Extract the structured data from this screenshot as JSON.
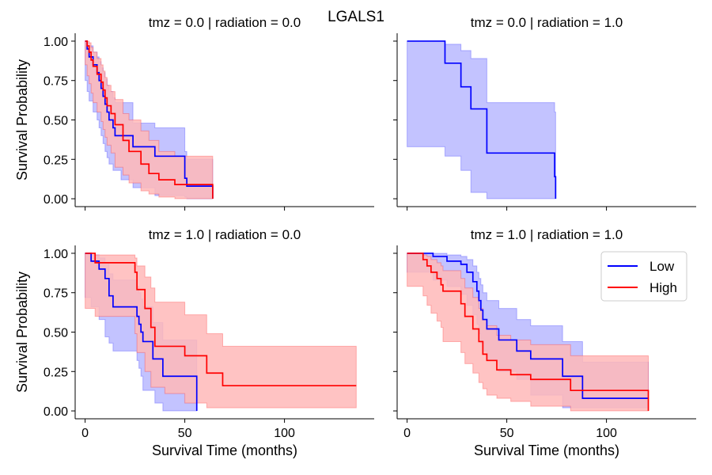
{
  "figure": {
    "suptitle": "LGALS1",
    "colors": {
      "Low": "#0000ff",
      "High": "#ff0000"
    },
    "legend": {
      "placement": "upper right of bottom-right panel",
      "entries": [
        "Low",
        "High"
      ]
    }
  },
  "chart_data": [
    {
      "type": "line",
      "title": "tmz = 0.0 | radiation = 0.0",
      "xlabel": "",
      "ylabel": "Survival Probability",
      "xlim": [
        -5,
        145
      ],
      "ylim": [
        -0.05,
        1.05
      ],
      "xticks": [
        0,
        50,
        100
      ],
      "yticks": [
        "0.00",
        "0.25",
        "0.50",
        "0.75",
        "1.00"
      ],
      "series": [
        {
          "name": "Low",
          "color": "#0000ff",
          "x": [
            0,
            1,
            2,
            4,
            6,
            7,
            8,
            9,
            10,
            11,
            12,
            14,
            15,
            18,
            24,
            35,
            50,
            51,
            64
          ],
          "y": [
            1.0,
            0.95,
            0.9,
            0.85,
            0.8,
            0.75,
            0.7,
            0.65,
            0.6,
            0.55,
            0.5,
            0.45,
            0.4,
            0.4,
            0.33,
            0.27,
            0.13,
            0.08,
            0.0
          ],
          "ci_lower": [
            1.0,
            0.75,
            0.68,
            0.62,
            0.55,
            0.5,
            0.45,
            0.4,
            0.35,
            0.3,
            0.26,
            0.22,
            0.18,
            0.18,
            0.12,
            0.07,
            0.02,
            0.01,
            0.0
          ],
          "ci_upper": [
            1.0,
            0.99,
            0.97,
            0.93,
            0.9,
            0.87,
            0.83,
            0.8,
            0.76,
            0.72,
            0.68,
            0.64,
            0.61,
            0.61,
            0.48,
            0.45,
            0.3,
            0.25,
            0.25
          ]
        },
        {
          "name": "High",
          "color": "#ff0000",
          "x": [
            0,
            1,
            2,
            3,
            4,
            6,
            8,
            9,
            10,
            11,
            13,
            15,
            19,
            22,
            28,
            32,
            37,
            45,
            64
          ],
          "y": [
            1.0,
            0.97,
            0.93,
            0.88,
            0.84,
            0.79,
            0.74,
            0.69,
            0.64,
            0.59,
            0.54,
            0.47,
            0.37,
            0.3,
            0.22,
            0.16,
            0.12,
            0.09,
            0.0
          ],
          "ci_lower": [
            1.0,
            0.85,
            0.78,
            0.73,
            0.67,
            0.61,
            0.55,
            0.49,
            0.44,
            0.39,
            0.34,
            0.29,
            0.2,
            0.15,
            0.1,
            0.05,
            0.03,
            0.01,
            0.0
          ],
          "ci_upper": [
            1.0,
            1.0,
            0.99,
            0.96,
            0.93,
            0.89,
            0.85,
            0.81,
            0.77,
            0.72,
            0.68,
            0.63,
            0.54,
            0.5,
            0.43,
            0.37,
            0.3,
            0.27,
            0.27
          ]
        }
      ]
    },
    {
      "type": "line",
      "title": "tmz = 0.0 | radiation = 1.0",
      "xlabel": "",
      "ylabel": "",
      "xlim": [
        -5,
        145
      ],
      "ylim": [
        -0.05,
        1.05
      ],
      "xticks": [
        0,
        50,
        100
      ],
      "yticks": [
        "0.00",
        "0.25",
        "0.50",
        "0.75",
        "1.00"
      ],
      "series": [
        {
          "name": "Low",
          "color": "#0000ff",
          "x": [
            0,
            19,
            27,
            32,
            40,
            74,
            74.5
          ],
          "y": [
            1.0,
            0.86,
            0.71,
            0.57,
            0.29,
            0.14,
            0.0
          ],
          "ci_lower": [
            1.0,
            0.33,
            0.27,
            0.18,
            0.04,
            0.0,
            0.0
          ],
          "ci_upper": [
            1.0,
            0.98,
            0.94,
            0.89,
            0.61,
            0.55,
            0.55
          ]
        }
      ]
    },
    {
      "type": "line",
      "title": "tmz = 1.0 | radiation = 0.0",
      "xlabel": "Survival Time (months)",
      "ylabel": "Survival Probability",
      "xlim": [
        -5,
        145
      ],
      "ylim": [
        -0.05,
        1.05
      ],
      "xticks": [
        0,
        50,
        100
      ],
      "yticks": [
        "0.00",
        "0.25",
        "0.50",
        "0.75",
        "1.00"
      ],
      "series": [
        {
          "name": "Low",
          "color": "#0000ff",
          "x": [
            0,
            3,
            7,
            10,
            12,
            14,
            26,
            27,
            28,
            29,
            34,
            35,
            39,
            56
          ],
          "y": [
            1.0,
            0.95,
            0.9,
            0.84,
            0.73,
            0.66,
            0.6,
            0.55,
            0.5,
            0.44,
            0.33,
            0.33,
            0.22,
            0.0
          ],
          "ci_lower": [
            1.0,
            0.72,
            0.66,
            0.58,
            0.47,
            0.43,
            0.38,
            0.32,
            0.27,
            0.22,
            0.13,
            0.13,
            0.05,
            0.0
          ],
          "ci_upper": [
            1.0,
            0.99,
            0.97,
            0.94,
            0.87,
            0.83,
            0.79,
            0.75,
            0.71,
            0.66,
            0.56,
            0.56,
            0.45,
            0.45
          ]
        },
        {
          "name": "High",
          "color": "#ff0000",
          "x": [
            0,
            5,
            25,
            26,
            30,
            33,
            35,
            40,
            50,
            61,
            69,
            136
          ],
          "y": [
            1.0,
            0.94,
            0.88,
            0.77,
            0.65,
            0.53,
            0.41,
            0.41,
            0.35,
            0.24,
            0.16,
            0.16
          ],
          "ci_lower": [
            1.0,
            0.65,
            0.6,
            0.49,
            0.37,
            0.25,
            0.15,
            0.15,
            0.11,
            0.05,
            0.02,
            0.02
          ],
          "ci_upper": [
            1.0,
            0.99,
            0.97,
            0.92,
            0.85,
            0.78,
            0.69,
            0.69,
            0.61,
            0.49,
            0.41,
            0.41
          ]
        }
      ]
    },
    {
      "type": "line",
      "title": "tmz = 1.0 | radiation = 1.0",
      "xlabel": "Survival Time (months)",
      "ylabel": "",
      "xlim": [
        -5,
        145
      ],
      "ylim": [
        -0.05,
        1.05
      ],
      "xticks": [
        0,
        50,
        100
      ],
      "yticks": [
        "0.00",
        "0.25",
        "0.50",
        "0.75",
        "1.00"
      ],
      "series": [
        {
          "name": "Low",
          "color": "#0000ff",
          "x": [
            0,
            13,
            20,
            27,
            30,
            33,
            35,
            36,
            37,
            38,
            40,
            46,
            55,
            62,
            78,
            88,
            121
          ],
          "y": [
            1.0,
            0.98,
            0.95,
            0.93,
            0.88,
            0.82,
            0.76,
            0.7,
            0.64,
            0.58,
            0.52,
            0.45,
            0.38,
            0.33,
            0.22,
            0.08,
            0.08
          ],
          "ci_lower": [
            1.0,
            0.88,
            0.83,
            0.79,
            0.74,
            0.67,
            0.61,
            0.55,
            0.49,
            0.43,
            0.38,
            0.32,
            0.25,
            0.2,
            0.1,
            0.02,
            0.02
          ],
          "ci_upper": [
            1.0,
            1.0,
            0.99,
            0.98,
            0.96,
            0.92,
            0.88,
            0.84,
            0.8,
            0.75,
            0.7,
            0.65,
            0.58,
            0.54,
            0.44,
            0.31,
            0.31
          ]
        },
        {
          "name": "High",
          "color": "#ff0000",
          "x": [
            0,
            8,
            10,
            12,
            15,
            17,
            18,
            27,
            29,
            33,
            36,
            38,
            40,
            45,
            52,
            62,
            82,
            121
          ],
          "y": [
            1.0,
            0.96,
            0.92,
            0.88,
            0.84,
            0.8,
            0.76,
            0.68,
            0.6,
            0.52,
            0.44,
            0.36,
            0.32,
            0.26,
            0.23,
            0.2,
            0.13,
            0.0
          ],
          "ci_lower": [
            1.0,
            0.79,
            0.73,
            0.67,
            0.62,
            0.57,
            0.53,
            0.44,
            0.37,
            0.3,
            0.24,
            0.18,
            0.14,
            0.1,
            0.08,
            0.06,
            0.03,
            0.0
          ],
          "ci_upper": [
            1.0,
            0.99,
            0.98,
            0.96,
            0.94,
            0.92,
            0.89,
            0.84,
            0.78,
            0.72,
            0.65,
            0.58,
            0.54,
            0.48,
            0.45,
            0.42,
            0.35,
            0.35
          ]
        }
      ]
    }
  ]
}
